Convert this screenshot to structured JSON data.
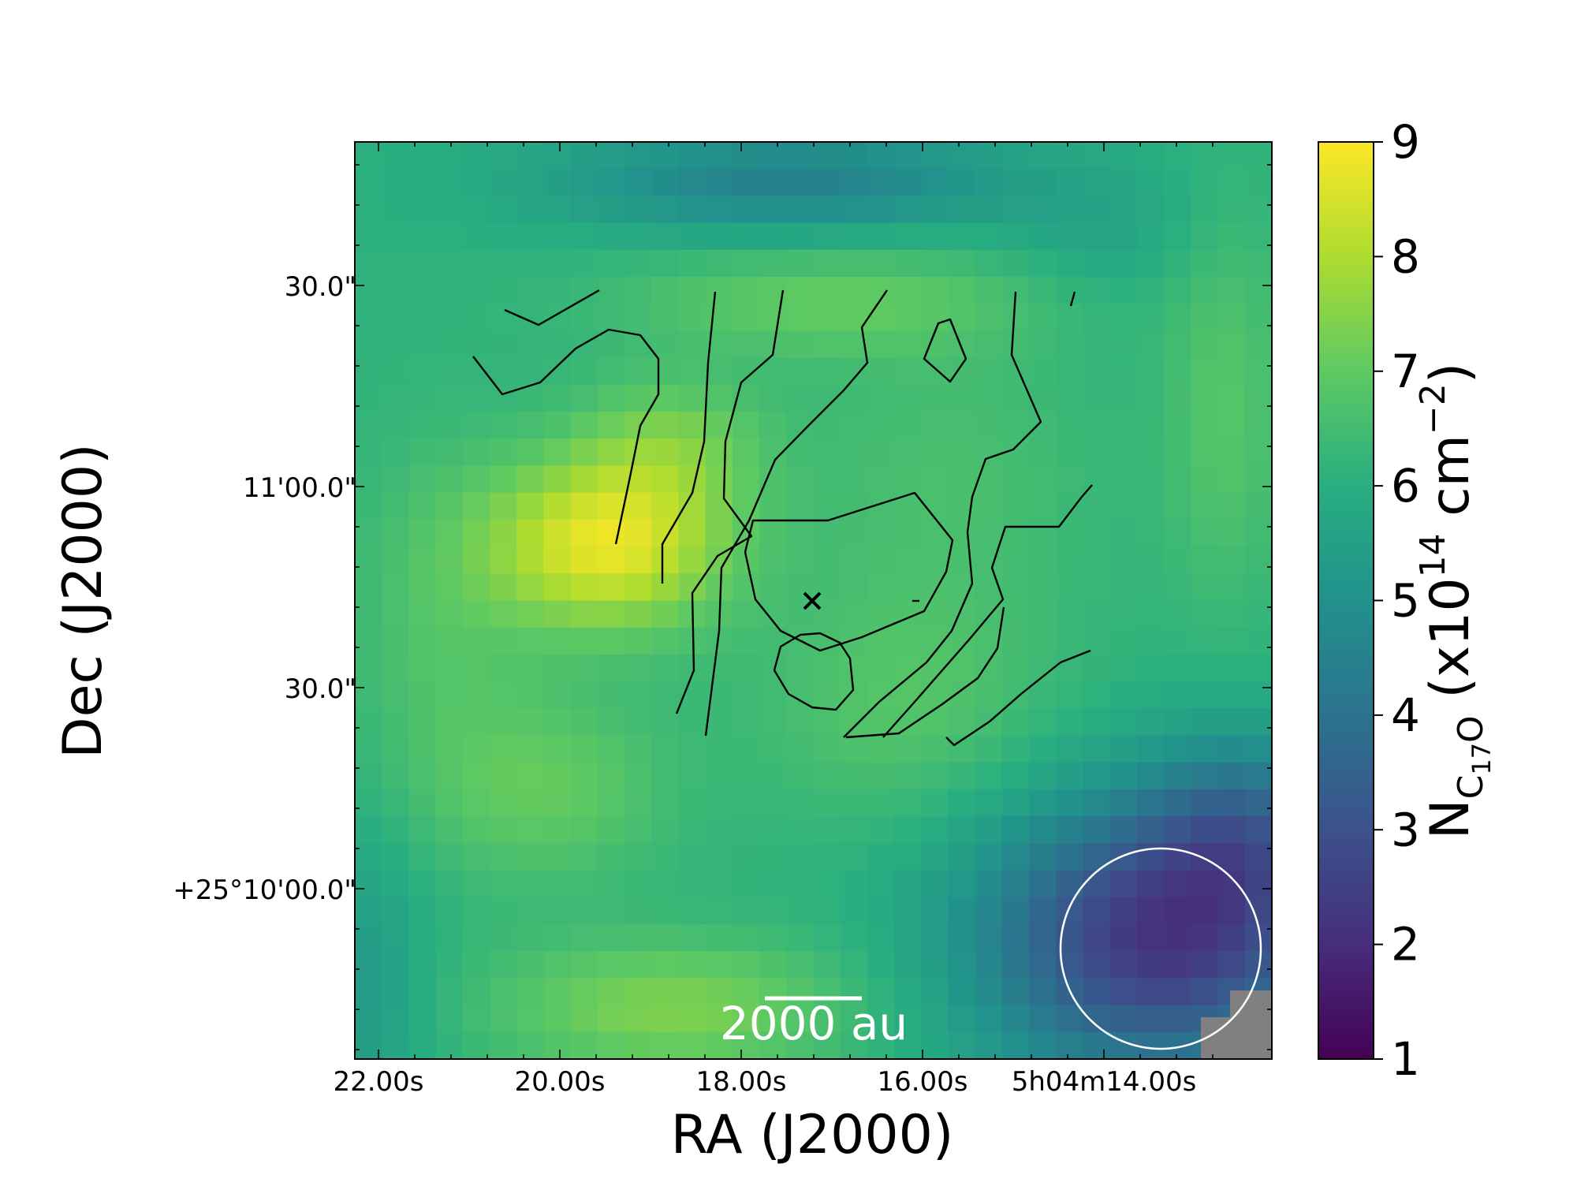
{
  "chart_data": {
    "type": "heatmap",
    "xlabel": "RA (J2000)",
    "ylabel": "Dec (J2000)",
    "x_ticks": [
      "22.00s",
      "20.00s",
      "18.00s",
      "16.00s",
      "5h04m14.00s"
    ],
    "y_ticks": [
      "30.0\"",
      "11'00.0\"",
      "30.0\"",
      "+25°10'00.0\""
    ],
    "colorbar": {
      "label_main": "N",
      "label_sub": "C",
      "label_sub2": "17",
      "label_sub3": "O",
      "label_units": " (x10",
      "label_exp": "14",
      "label_units2": " cm",
      "label_exp2": "−2",
      "label_close": ")",
      "colormap": "viridis",
      "range": [
        1,
        9
      ],
      "ticks": [
        "1",
        "2",
        "3",
        "4",
        "5",
        "6",
        "7",
        "8",
        "9"
      ]
    },
    "scale_bar_label": "2000 au",
    "peak_value": 8.9,
    "min_value": 1.7,
    "colormap_stops": [
      "#440154",
      "#472d7b",
      "#3b528b",
      "#2c728e",
      "#21918c",
      "#28ae80",
      "#5ec962",
      "#addc30",
      "#fde725"
    ]
  }
}
